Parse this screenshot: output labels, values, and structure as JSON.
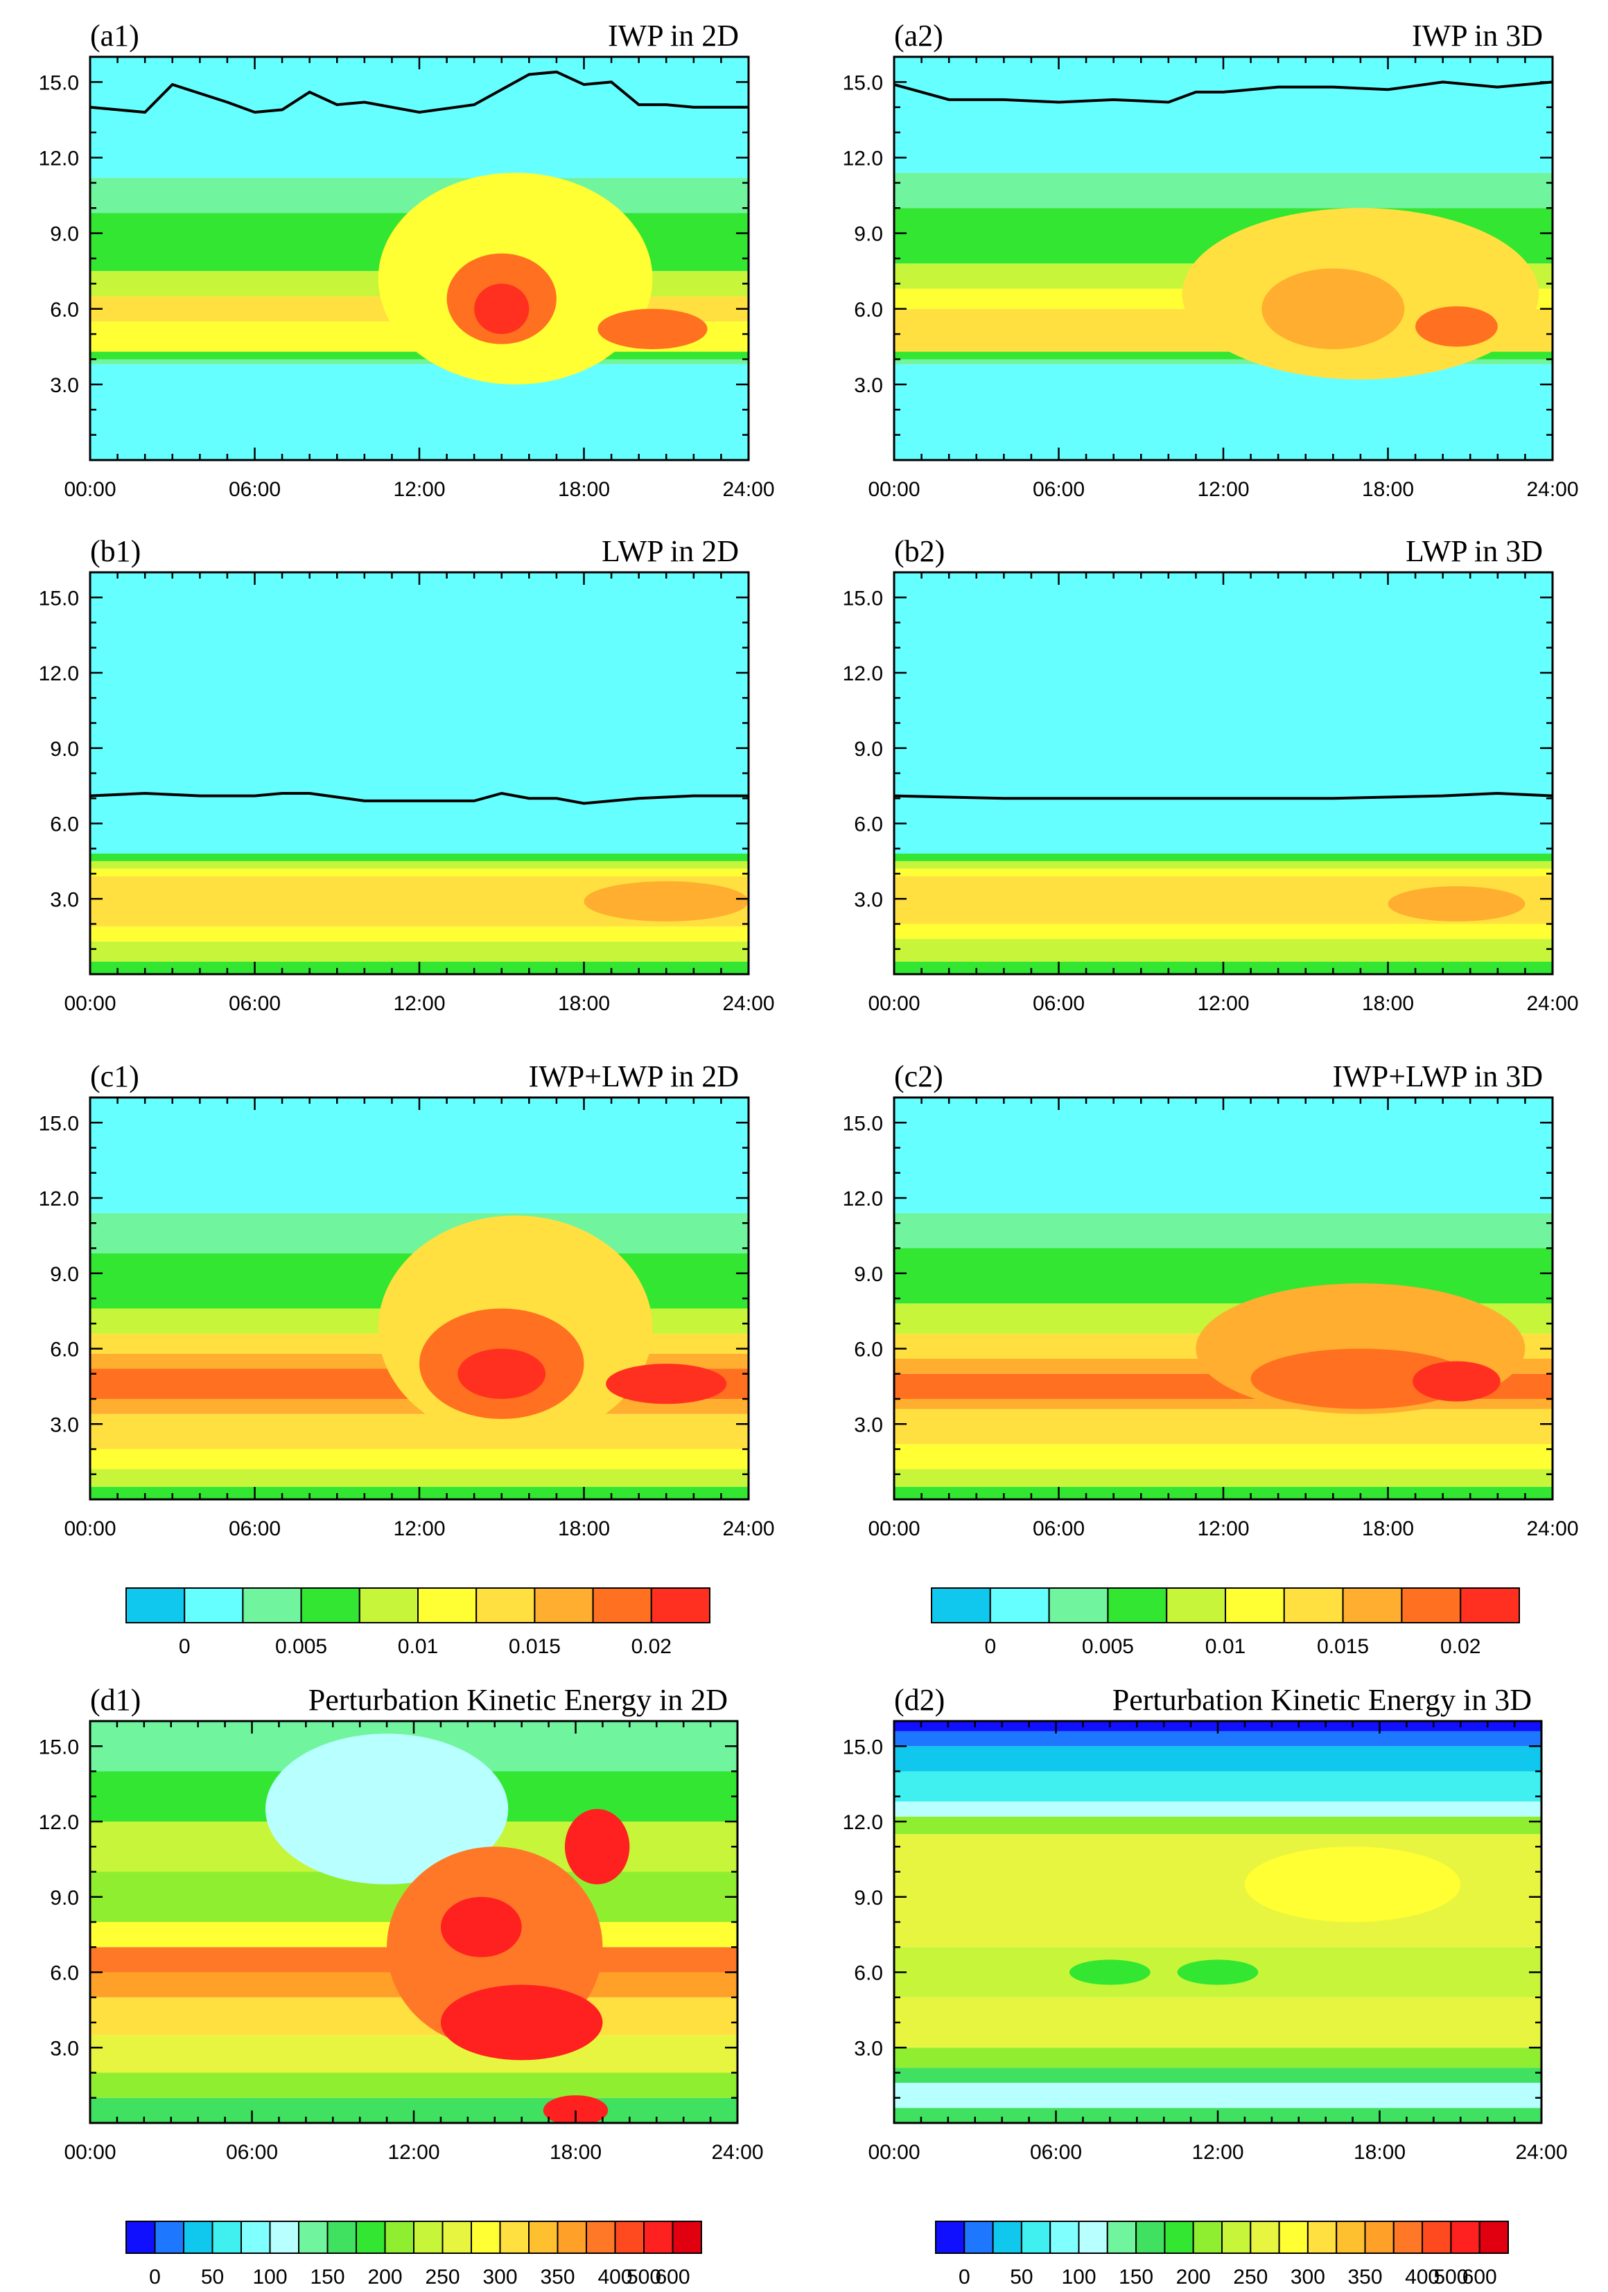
{
  "figure": {
    "x_tick_labels": [
      "00:00",
      "06:00",
      "12:00",
      "18:00",
      "24:00"
    ],
    "y_tick_labels": [
      "3.0",
      "6.0",
      "9.0",
      "12.0",
      "15.0"
    ]
  },
  "colorbars": [
    {
      "name": "water-path-colorbar-left",
      "colors": [
        "#10c8ee",
        "#66ffff",
        "#70f59e",
        "#32e632",
        "#c6f53a",
        "#ffff33",
        "#ffe040",
        "#ffae30",
        "#ff7020",
        "#ff3020"
      ],
      "labels": [
        "0",
        "0.005",
        "0.01",
        "0.015",
        "0.02"
      ]
    },
    {
      "name": "water-path-colorbar-right",
      "colors": [
        "#10c8ee",
        "#66ffff",
        "#70f59e",
        "#32e632",
        "#c6f53a",
        "#ffff33",
        "#ffe040",
        "#ffae30",
        "#ff7020",
        "#ff3020"
      ],
      "labels": [
        "0",
        "0.005",
        "0.01",
        "0.015",
        "0.02"
      ]
    },
    {
      "name": "pke-colorbar-left",
      "colors": [
        "#1010ff",
        "#1e78ff",
        "#10c8ee",
        "#40f0f0",
        "#80ffff",
        "#b8ffff",
        "#70f59e",
        "#40e060",
        "#32e632",
        "#90ee30",
        "#c6f53a",
        "#e8f540",
        "#ffff33",
        "#ffe040",
        "#ffc030",
        "#ffa028",
        "#ff7828",
        "#ff4a20",
        "#ff2020",
        "#e00010"
      ],
      "labels": [
        "0",
        "50",
        "100",
        "150",
        "200",
        "250",
        "300",
        "350",
        "400",
        "500",
        "600"
      ]
    },
    {
      "name": "pke-colorbar-right",
      "colors": [
        "#1010ff",
        "#1e78ff",
        "#10c8ee",
        "#40f0f0",
        "#80ffff",
        "#b8ffff",
        "#70f59e",
        "#40e060",
        "#32e632",
        "#90ee30",
        "#c6f53a",
        "#e8f540",
        "#ffff33",
        "#ffe040",
        "#ffc030",
        "#ffa028",
        "#ff7828",
        "#ff4a20",
        "#ff2020",
        "#e00010"
      ],
      "labels": [
        "0",
        "50",
        "100",
        "150",
        "200",
        "250",
        "300",
        "350",
        "400",
        "500",
        "600"
      ]
    }
  ],
  "chart_data": [
    {
      "id": "a1",
      "tag": "(a1)",
      "title": "IWP in 2D",
      "type": "heatmap",
      "x": [
        "00:00",
        "06:00",
        "12:00",
        "18:00",
        "24:00"
      ],
      "xlim": [
        0,
        24
      ],
      "ylim": [
        0,
        16
      ],
      "line_hours": [
        0,
        2,
        3,
        5,
        6,
        7,
        8,
        9,
        10,
        12,
        14,
        16,
        17,
        18,
        19,
        20,
        21,
        22,
        24
      ],
      "line_heights": [
        14.0,
        13.8,
        14.9,
        14.2,
        13.8,
        13.9,
        14.6,
        14.1,
        14.2,
        13.8,
        14.1,
        15.3,
        15.4,
        14.9,
        15.0,
        14.1,
        14.1,
        14.0,
        14.0
      ],
      "bands": [
        {
          "class": 1,
          "y0": 0,
          "y1": 3.8
        },
        {
          "class": 2,
          "y0": 3.8,
          "y1": 4.0
        },
        {
          "class": 3,
          "y0": 4.0,
          "y1": 4.3
        },
        {
          "class": 5,
          "y0": 4.3,
          "y1": 5.5
        },
        {
          "class": 6,
          "y0": 5.5,
          "y1": 6.5
        },
        {
          "class": 4,
          "y0": 6.5,
          "y1": 7.5
        },
        {
          "class": 3,
          "y0": 7.5,
          "y1": 9.8
        },
        {
          "class": 2,
          "y0": 9.8,
          "y1": 11.2
        },
        {
          "class": 1,
          "y0": 11.2,
          "y1": 16
        }
      ],
      "blobs": [
        {
          "hour": 15.5,
          "height": 7.2,
          "rx_h": 5.0,
          "ry_km": 4.2,
          "class": 5
        },
        {
          "hour": 15.0,
          "height": 6.4,
          "rx_h": 2.0,
          "ry_km": 1.8,
          "class": 8
        },
        {
          "hour": 15.0,
          "height": 6.0,
          "rx_h": 1.0,
          "ry_km": 1.0,
          "class": 9
        },
        {
          "hour": 20.5,
          "height": 5.2,
          "rx_h": 2.0,
          "ry_km": 0.8,
          "class": 8
        }
      ]
    },
    {
      "id": "a2",
      "tag": "(a2)",
      "title": "IWP in 3D",
      "type": "heatmap",
      "x": [
        "00:00",
        "06:00",
        "12:00",
        "18:00",
        "24:00"
      ],
      "xlim": [
        0,
        24
      ],
      "ylim": [
        0,
        16
      ],
      "line_hours": [
        0,
        2,
        4,
        6,
        8,
        10,
        11,
        12,
        14,
        16,
        18,
        20,
        22,
        24
      ],
      "line_heights": [
        14.9,
        14.3,
        14.3,
        14.2,
        14.3,
        14.2,
        14.6,
        14.6,
        14.8,
        14.8,
        14.7,
        15.0,
        14.8,
        15.0
      ],
      "bands": [
        {
          "class": 1,
          "y0": 0,
          "y1": 3.8
        },
        {
          "class": 2,
          "y0": 3.8,
          "y1": 4.0
        },
        {
          "class": 3,
          "y0": 4.0,
          "y1": 4.3
        },
        {
          "class": 6,
          "y0": 4.3,
          "y1": 6.0
        },
        {
          "class": 5,
          "y0": 6.0,
          "y1": 6.8
        },
        {
          "class": 4,
          "y0": 6.8,
          "y1": 7.8
        },
        {
          "class": 3,
          "y0": 7.8,
          "y1": 10.0
        },
        {
          "class": 2,
          "y0": 10.0,
          "y1": 11.4
        },
        {
          "class": 1,
          "y0": 11.4,
          "y1": 16
        }
      ],
      "blobs": [
        {
          "hour": 17.0,
          "height": 6.6,
          "rx_h": 6.5,
          "ry_km": 3.4,
          "class": 6
        },
        {
          "hour": 16.0,
          "height": 6.0,
          "rx_h": 2.6,
          "ry_km": 1.6,
          "class": 7
        },
        {
          "hour": 20.5,
          "height": 5.3,
          "rx_h": 1.5,
          "ry_km": 0.8,
          "class": 8
        }
      ]
    },
    {
      "id": "b1",
      "tag": "(b1)",
      "title": "LWP in 2D",
      "type": "heatmap",
      "x": [
        "00:00",
        "06:00",
        "12:00",
        "18:00",
        "24:00"
      ],
      "xlim": [
        0,
        24
      ],
      "ylim": [
        0,
        16
      ],
      "line_hours": [
        0,
        2,
        4,
        6,
        7,
        8,
        10,
        12,
        14,
        15,
        16,
        17,
        18,
        19,
        20,
        22,
        24
      ],
      "line_heights": [
        7.1,
        7.2,
        7.1,
        7.1,
        7.2,
        7.2,
        6.9,
        6.9,
        6.9,
        7.2,
        7.0,
        7.0,
        6.8,
        6.9,
        7.0,
        7.1,
        7.1
      ],
      "bands": [
        {
          "class": 3,
          "y0": 0,
          "y1": 0.5
        },
        {
          "class": 4,
          "y0": 0.5,
          "y1": 1.3
        },
        {
          "class": 5,
          "y0": 1.3,
          "y1": 1.9
        },
        {
          "class": 6,
          "y0": 1.9,
          "y1": 3.9
        },
        {
          "class": 5,
          "y0": 3.9,
          "y1": 4.2
        },
        {
          "class": 4,
          "y0": 4.2,
          "y1": 4.5
        },
        {
          "class": 3,
          "y0": 4.5,
          "y1": 4.8
        },
        {
          "class": 1,
          "y0": 4.8,
          "y1": 16
        }
      ],
      "blobs": [
        {
          "hour": 21.0,
          "height": 2.9,
          "rx_h": 3.0,
          "ry_km": 0.8,
          "class": 7
        }
      ]
    },
    {
      "id": "b2",
      "tag": "(b2)",
      "title": "LWP in 3D",
      "type": "heatmap",
      "x": [
        "00:00",
        "06:00",
        "12:00",
        "18:00",
        "24:00"
      ],
      "xlim": [
        0,
        24
      ],
      "ylim": [
        0,
        16
      ],
      "line_hours": [
        0,
        4,
        8,
        12,
        16,
        20,
        22,
        24
      ],
      "line_heights": [
        7.1,
        7.0,
        7.0,
        7.0,
        7.0,
        7.1,
        7.2,
        7.1
      ],
      "bands": [
        {
          "class": 3,
          "y0": 0,
          "y1": 0.5
        },
        {
          "class": 4,
          "y0": 0.5,
          "y1": 1.4
        },
        {
          "class": 5,
          "y0": 1.4,
          "y1": 2.0
        },
        {
          "class": 6,
          "y0": 2.0,
          "y1": 3.9
        },
        {
          "class": 5,
          "y0": 3.9,
          "y1": 4.2
        },
        {
          "class": 4,
          "y0": 4.2,
          "y1": 4.5
        },
        {
          "class": 3,
          "y0": 4.5,
          "y1": 4.8
        },
        {
          "class": 1,
          "y0": 4.8,
          "y1": 16
        }
      ],
      "blobs": [
        {
          "hour": 20.5,
          "height": 2.8,
          "rx_h": 2.5,
          "ry_km": 0.7,
          "class": 7
        }
      ]
    },
    {
      "id": "c1",
      "tag": "(c1)",
      "title": "IWP+LWP in 2D",
      "type": "heatmap",
      "x": [
        "00:00",
        "06:00",
        "12:00",
        "18:00",
        "24:00"
      ],
      "xlim": [
        0,
        24
      ],
      "ylim": [
        0,
        16
      ],
      "bands": [
        {
          "class": 3,
          "y0": 0,
          "y1": 0.5
        },
        {
          "class": 4,
          "y0": 0.5,
          "y1": 1.2
        },
        {
          "class": 5,
          "y0": 1.2,
          "y1": 2.0
        },
        {
          "class": 6,
          "y0": 2.0,
          "y1": 3.4
        },
        {
          "class": 7,
          "y0": 3.4,
          "y1": 4.0
        },
        {
          "class": 8,
          "y0": 4.0,
          "y1": 5.2
        },
        {
          "class": 7,
          "y0": 5.2,
          "y1": 5.8
        },
        {
          "class": 6,
          "y0": 5.8,
          "y1": 6.6
        },
        {
          "class": 4,
          "y0": 6.6,
          "y1": 7.6
        },
        {
          "class": 3,
          "y0": 7.6,
          "y1": 9.8
        },
        {
          "class": 2,
          "y0": 9.8,
          "y1": 11.4
        },
        {
          "class": 1,
          "y0": 11.4,
          "y1": 16
        }
      ],
      "blobs": [
        {
          "hour": 15.5,
          "height": 6.8,
          "rx_h": 5.0,
          "ry_km": 4.5,
          "class": 6
        },
        {
          "hour": 15.0,
          "height": 5.4,
          "rx_h": 3.0,
          "ry_km": 2.2,
          "class": 8
        },
        {
          "hour": 15.0,
          "height": 5.0,
          "rx_h": 1.6,
          "ry_km": 1.0,
          "class": 9
        },
        {
          "hour": 21.0,
          "height": 4.6,
          "rx_h": 2.2,
          "ry_km": 0.8,
          "class": 9
        }
      ]
    },
    {
      "id": "c2",
      "tag": "(c2)",
      "title": "IWP+LWP in 3D",
      "type": "heatmap",
      "x": [
        "00:00",
        "06:00",
        "12:00",
        "18:00",
        "24:00"
      ],
      "xlim": [
        0,
        24
      ],
      "ylim": [
        0,
        16
      ],
      "bands": [
        {
          "class": 3,
          "y0": 0,
          "y1": 0.5
        },
        {
          "class": 4,
          "y0": 0.5,
          "y1": 1.2
        },
        {
          "class": 5,
          "y0": 1.2,
          "y1": 2.2
        },
        {
          "class": 6,
          "y0": 2.2,
          "y1": 3.6
        },
        {
          "class": 7,
          "y0": 3.6,
          "y1": 4.0
        },
        {
          "class": 8,
          "y0": 4.0,
          "y1": 5.0
        },
        {
          "class": 7,
          "y0": 5.0,
          "y1": 5.6
        },
        {
          "class": 6,
          "y0": 5.6,
          "y1": 6.6
        },
        {
          "class": 4,
          "y0": 6.6,
          "y1": 7.8
        },
        {
          "class": 3,
          "y0": 7.8,
          "y1": 10.0
        },
        {
          "class": 2,
          "y0": 10.0,
          "y1": 11.4
        },
        {
          "class": 1,
          "y0": 11.4,
          "y1": 16
        }
      ],
      "blobs": [
        {
          "hour": 17.0,
          "height": 6.0,
          "rx_h": 6.0,
          "ry_km": 2.6,
          "class": 7
        },
        {
          "hour": 17.0,
          "height": 4.8,
          "rx_h": 4.0,
          "ry_km": 1.2,
          "class": 8
        },
        {
          "hour": 20.5,
          "height": 4.7,
          "rx_h": 1.6,
          "ry_km": 0.8,
          "class": 9
        }
      ]
    },
    {
      "id": "d1",
      "tag": "(d1)",
      "title": "Perturbation Kinetic Energy in 2D",
      "type": "heatmap",
      "x": [
        "00:00",
        "06:00",
        "12:00",
        "18:00",
        "24:00"
      ],
      "xlim": [
        0,
        24
      ],
      "ylim": [
        0,
        16
      ],
      "bands": [
        {
          "class": 7,
          "y0": 0,
          "y1": 1.0
        },
        {
          "class": 9,
          "y0": 1.0,
          "y1": 2.0
        },
        {
          "class": 11,
          "y0": 2.0,
          "y1": 3.5
        },
        {
          "class": 13,
          "y0": 3.5,
          "y1": 5.0
        },
        {
          "class": 15,
          "y0": 5.0,
          "y1": 6.0
        },
        {
          "class": 16,
          "y0": 6.0,
          "y1": 7.0
        },
        {
          "class": 12,
          "y0": 7.0,
          "y1": 8.0
        },
        {
          "class": 9,
          "y0": 8.0,
          "y1": 10.0
        },
        {
          "class": 10,
          "y0": 10.0,
          "y1": 12.0
        },
        {
          "class": 8,
          "y0": 12.0,
          "y1": 14.0
        },
        {
          "class": 6,
          "y0": 14.0,
          "y1": 16
        }
      ],
      "blobs": [
        {
          "hour": 11.0,
          "height": 12.5,
          "rx_h": 4.5,
          "ry_km": 3.0,
          "class": 5
        },
        {
          "hour": 15.0,
          "height": 7.0,
          "rx_h": 4.0,
          "ry_km": 4.0,
          "class": 16
        },
        {
          "hour": 14.5,
          "height": 7.8,
          "rx_h": 1.5,
          "ry_km": 1.2,
          "class": 18
        },
        {
          "hour": 16.0,
          "height": 4.0,
          "rx_h": 3.0,
          "ry_km": 1.5,
          "class": 18
        },
        {
          "hour": 18.8,
          "height": 11.0,
          "rx_h": 1.2,
          "ry_km": 1.5,
          "class": 18
        },
        {
          "hour": 18.0,
          "height": 0.5,
          "rx_h": 1.2,
          "ry_km": 0.6,
          "class": 18
        }
      ]
    },
    {
      "id": "d2",
      "tag": "(d2)",
      "title": "Perturbation Kinetic Energy in 3D",
      "type": "heatmap",
      "x": [
        "00:00",
        "06:00",
        "12:00",
        "18:00",
        "24:00"
      ],
      "xlim": [
        0,
        24
      ],
      "ylim": [
        0,
        16
      ],
      "bands": [
        {
          "class": 7,
          "y0": 0,
          "y1": 0.6
        },
        {
          "class": 5,
          "y0": 0.6,
          "y1": 1.6
        },
        {
          "class": 7,
          "y0": 1.6,
          "y1": 2.2
        },
        {
          "class": 9,
          "y0": 2.2,
          "y1": 3.0
        },
        {
          "class": 11,
          "y0": 3.0,
          "y1": 5.0
        },
        {
          "class": 10,
          "y0": 5.0,
          "y1": 7.0
        },
        {
          "class": 11,
          "y0": 7.0,
          "y1": 11.5
        },
        {
          "class": 9,
          "y0": 11.5,
          "y1": 12.2
        },
        {
          "class": 5,
          "y0": 12.2,
          "y1": 12.8
        },
        {
          "class": 3,
          "y0": 12.8,
          "y1": 14.0
        },
        {
          "class": 2,
          "y0": 14.0,
          "y1": 15.0
        },
        {
          "class": 1,
          "y0": 15.0,
          "y1": 15.6
        },
        {
          "class": 0,
          "y0": 15.6,
          "y1": 16
        }
      ],
      "blobs": [
        {
          "hour": 17.0,
          "height": 9.5,
          "rx_h": 4.0,
          "ry_km": 1.5,
          "class": 12
        },
        {
          "hour": 8.0,
          "height": 6.0,
          "rx_h": 1.5,
          "ry_km": 0.5,
          "class": 8
        },
        {
          "hour": 12.0,
          "height": 6.0,
          "rx_h": 1.5,
          "ry_km": 0.5,
          "class": 8
        }
      ]
    }
  ]
}
